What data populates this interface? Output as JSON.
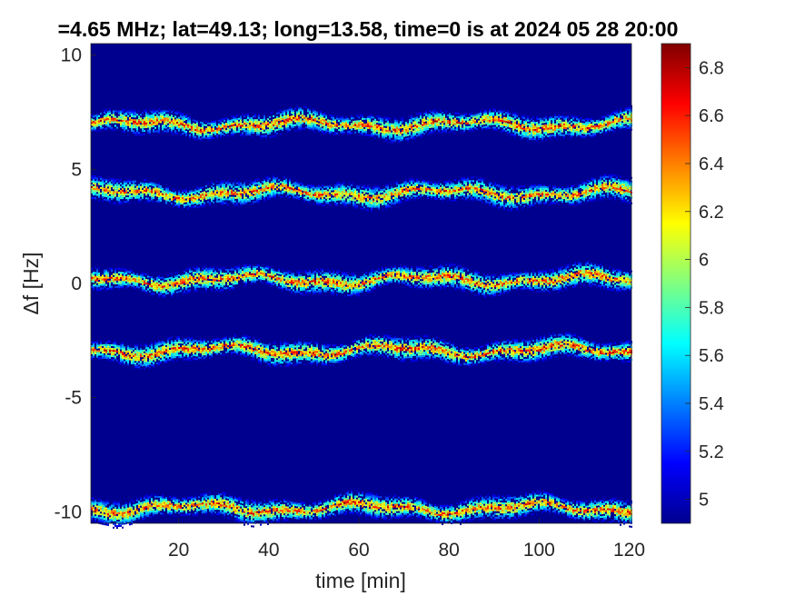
{
  "chart_data": {
    "type": "heatmap",
    "title": "=4.65 MHz;  lat=49.13; long=13.58, time=0 is at 2024 05 28 20:00",
    "xlabel": "time [min]",
    "ylabel": "Δf [Hz]",
    "xlim": [
      0.5,
      120.5
    ],
    "ylim": [
      -10.5,
      10.5
    ],
    "x_ticks": [
      20,
      40,
      60,
      80,
      100,
      120
    ],
    "y_ticks": [
      10,
      5,
      0,
      -5,
      -10
    ],
    "colorbar": {
      "colormap": "jet",
      "clim": [
        4.9,
        6.9
      ],
      "ticks": [
        6.8,
        6.6,
        6.4,
        6.2,
        6,
        5.8,
        5.6,
        5.4,
        5.2,
        5
      ]
    },
    "background_value": 4.9,
    "bands": [
      {
        "center": 7.0,
        "peak": 6.85
      },
      {
        "center": 4.0,
        "peak": 6.8
      },
      {
        "center": 0.2,
        "peak": 6.85
      },
      {
        "center": -2.9,
        "peak": 6.9
      },
      {
        "center": -9.8,
        "peak": 6.85
      }
    ]
  }
}
